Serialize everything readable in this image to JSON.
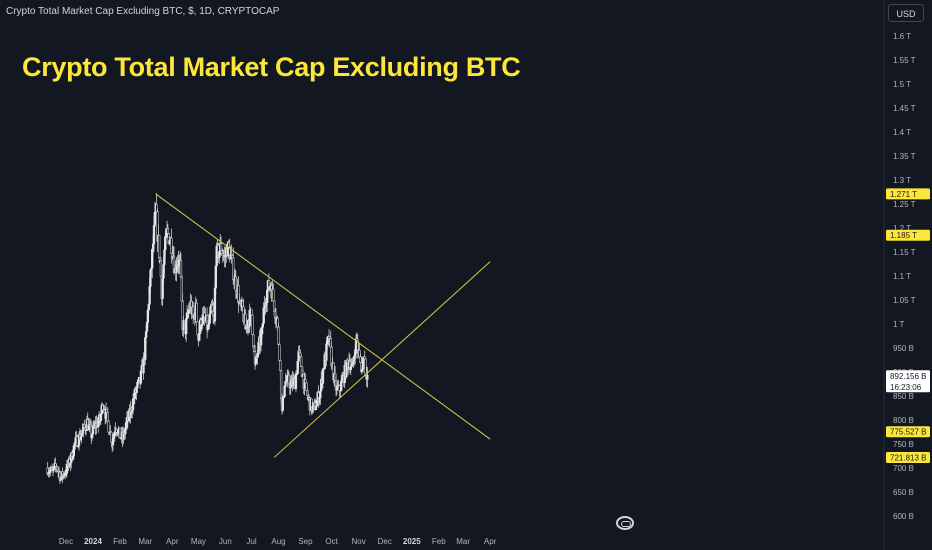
{
  "header": {
    "symbol": "Crypto Total Market Cap Excluding BTC, $, 1D, CRYPTOCAP",
    "headline": "Crypto Total Market Cap Excluding BTC",
    "currency_button": "USD"
  },
  "colors": {
    "background": "#131722",
    "candle": "#e6e6e6",
    "trendline": "#d7cc45",
    "marker": "#fde63a",
    "headline": "#fde63a"
  },
  "icons": {
    "watermark": "tradingview-logo-icon"
  },
  "chart_data": {
    "type": "candlestick",
    "title": "Crypto Total Market Cap Excluding BTC",
    "y_unit": "USD",
    "ylim": [
      595,
      1640
    ],
    "y_ticks": [
      {
        "value": 600,
        "label": "600 B"
      },
      {
        "value": 650,
        "label": "650 B"
      },
      {
        "value": 700,
        "label": "700 B"
      },
      {
        "value": 750,
        "label": "750 B"
      },
      {
        "value": 800,
        "label": "800 B"
      },
      {
        "value": 850,
        "label": "850 B"
      },
      {
        "value": 900,
        "label": "900 B"
      },
      {
        "value": 950,
        "label": "950 B"
      },
      {
        "value": 1000,
        "label": "1 T"
      },
      {
        "value": 1050,
        "label": "1.05 T"
      },
      {
        "value": 1100,
        "label": "1.1 T"
      },
      {
        "value": 1150,
        "label": "1.15 T"
      },
      {
        "value": 1200,
        "label": "1.2 T"
      },
      {
        "value": 1250,
        "label": "1.25 T"
      },
      {
        "value": 1300,
        "label": "1.3 T"
      },
      {
        "value": 1350,
        "label": "1.35 T"
      },
      {
        "value": 1400,
        "label": "1.4 T"
      },
      {
        "value": 1450,
        "label": "1.45 T"
      },
      {
        "value": 1500,
        "label": "1.5 T"
      },
      {
        "value": 1550,
        "label": "1.55 T"
      },
      {
        "value": 1600,
        "label": "1.6 T"
      }
    ],
    "x_ticks": [
      {
        "date": "2023-12-01",
        "label": "Dec",
        "bold": false
      },
      {
        "date": "2024-01-01",
        "label": "2024",
        "bold": true
      },
      {
        "date": "2024-02-01",
        "label": "Feb",
        "bold": false
      },
      {
        "date": "2024-03-01",
        "label": "Mar",
        "bold": false
      },
      {
        "date": "2024-04-01",
        "label": "Apr",
        "bold": false
      },
      {
        "date": "2024-05-01",
        "label": "May",
        "bold": false
      },
      {
        "date": "2024-06-01",
        "label": "Jun",
        "bold": false
      },
      {
        "date": "2024-07-01",
        "label": "Jul",
        "bold": false
      },
      {
        "date": "2024-08-01",
        "label": "Aug",
        "bold": false
      },
      {
        "date": "2024-09-01",
        "label": "Sep",
        "bold": false
      },
      {
        "date": "2024-10-01",
        "label": "Oct",
        "bold": false
      },
      {
        "date": "2024-11-01",
        "label": "Nov",
        "bold": false
      },
      {
        "date": "2024-12-01",
        "label": "Dec",
        "bold": false
      },
      {
        "date": "2025-01-01",
        "label": "2025",
        "bold": true
      },
      {
        "date": "2025-02-01",
        "label": "Feb",
        "bold": false
      },
      {
        "date": "2025-03-01",
        "label": "Mar",
        "bold": false
      },
      {
        "date": "2025-04-01",
        "label": "Apr",
        "bold": false
      }
    ],
    "price_path": [
      [
        "2023-11-10",
        700
      ],
      [
        "2023-11-15",
        690
      ],
      [
        "2023-11-20",
        705
      ],
      [
        "2023-11-25",
        680
      ],
      [
        "2023-12-01",
        695
      ],
      [
        "2023-12-06",
        715
      ],
      [
        "2023-12-11",
        750
      ],
      [
        "2023-12-15",
        760
      ],
      [
        "2023-12-20",
        775
      ],
      [
        "2023-12-25",
        795
      ],
      [
        "2023-12-30",
        770
      ],
      [
        "2024-01-04",
        790
      ],
      [
        "2024-01-09",
        800
      ],
      [
        "2024-01-12",
        835
      ],
      [
        "2024-01-16",
        810
      ],
      [
        "2024-01-20",
        780
      ],
      [
        "2024-01-23",
        755
      ],
      [
        "2024-01-27",
        790
      ],
      [
        "2024-01-31",
        770
      ],
      [
        "2024-02-04",
        760
      ],
      [
        "2024-02-08",
        790
      ],
      [
        "2024-02-12",
        810
      ],
      [
        "2024-02-16",
        840
      ],
      [
        "2024-02-20",
        865
      ],
      [
        "2024-02-24",
        880
      ],
      [
        "2024-02-28",
        920
      ],
      [
        "2024-03-02",
        975
      ],
      [
        "2024-03-05",
        1050
      ],
      [
        "2024-03-08",
        1120
      ],
      [
        "2024-03-11",
        1190
      ],
      [
        "2024-03-13",
        1240
      ],
      [
        "2024-03-15",
        1190
      ],
      [
        "2024-03-18",
        1130
      ],
      [
        "2024-03-20",
        1070
      ],
      [
        "2024-03-23",
        1150
      ],
      [
        "2024-03-26",
        1190
      ],
      [
        "2024-03-29",
        1180
      ],
      [
        "2024-04-01",
        1160
      ],
      [
        "2024-04-04",
        1110
      ],
      [
        "2024-04-07",
        1140
      ],
      [
        "2024-04-10",
        1120
      ],
      [
        "2024-04-13",
        1000
      ],
      [
        "2024-04-16",
        990
      ],
      [
        "2024-04-19",
        1020
      ],
      [
        "2024-04-22",
        1040
      ],
      [
        "2024-04-25",
        1010
      ],
      [
        "2024-04-28",
        1030
      ],
      [
        "2024-05-01",
        970
      ],
      [
        "2024-05-04",
        1010
      ],
      [
        "2024-05-08",
        1010
      ],
      [
        "2024-05-12",
        990
      ],
      [
        "2024-05-16",
        1030
      ],
      [
        "2024-05-19",
        1000
      ],
      [
        "2024-05-21",
        1140
      ],
      [
        "2024-05-24",
        1150
      ],
      [
        "2024-05-27",
        1160
      ],
      [
        "2024-05-31",
        1135
      ],
      [
        "2024-06-03",
        1160
      ],
      [
        "2024-06-06",
        1150
      ],
      [
        "2024-06-09",
        1120
      ],
      [
        "2024-06-12",
        1090
      ],
      [
        "2024-06-15",
        1070
      ],
      [
        "2024-06-18",
        1030
      ],
      [
        "2024-06-21",
        1030
      ],
      [
        "2024-06-24",
        990
      ],
      [
        "2024-06-27",
        1010
      ],
      [
        "2024-07-01",
        1020
      ],
      [
        "2024-07-05",
        910
      ],
      [
        "2024-07-09",
        950
      ],
      [
        "2024-07-13",
        980
      ],
      [
        "2024-07-16",
        1050
      ],
      [
        "2024-07-20",
        1075
      ],
      [
        "2024-07-23",
        1085
      ],
      [
        "2024-07-26",
        1050
      ],
      [
        "2024-07-30",
        1010
      ],
      [
        "2024-08-02",
        940
      ],
      [
        "2024-08-05",
        815
      ],
      [
        "2024-08-08",
        880
      ],
      [
        "2024-08-12",
        880
      ],
      [
        "2024-08-16",
        875
      ],
      [
        "2024-08-20",
        880
      ],
      [
        "2024-08-24",
        935
      ],
      [
        "2024-08-27",
        915
      ],
      [
        "2024-08-31",
        870
      ],
      [
        "2024-09-04",
        845
      ],
      [
        "2024-09-07",
        830
      ],
      [
        "2024-09-10",
        820
      ],
      [
        "2024-09-14",
        840
      ],
      [
        "2024-09-18",
        860
      ],
      [
        "2024-09-21",
        905
      ],
      [
        "2024-09-25",
        945
      ],
      [
        "2024-09-28",
        970
      ],
      [
        "2024-10-01",
        925
      ],
      [
        "2024-10-05",
        870
      ],
      [
        "2024-10-09",
        860
      ],
      [
        "2024-10-13",
        880
      ],
      [
        "2024-10-17",
        905
      ],
      [
        "2024-10-21",
        925
      ],
      [
        "2024-10-25",
        905
      ],
      [
        "2024-10-28",
        955
      ],
      [
        "2024-10-30",
        965
      ],
      [
        "2024-11-02",
        925
      ],
      [
        "2024-11-05",
        905
      ],
      [
        "2024-11-07",
        945
      ],
      [
        "2024-11-09",
        905
      ],
      [
        "2024-11-11",
        892
      ]
    ],
    "trendlines": [
      {
        "name": "descending-resistance",
        "start": [
          "2024-03-13",
          1271
        ],
        "end": [
          "2025-04-01",
          760
        ]
      },
      {
        "name": "ascending-support",
        "start": [
          "2024-07-27",
          722
        ],
        "end": [
          "2025-04-01",
          1130
        ]
      }
    ],
    "price_markers": [
      {
        "value": 1271,
        "label": "1.271 T",
        "style": "yellow"
      },
      {
        "value": 1185,
        "label": "1.185 T",
        "style": "yellow"
      },
      {
        "value": 775.527,
        "label": "775.527 B",
        "style": "yellow"
      },
      {
        "value": 721.813,
        "label": "721.813 B",
        "style": "yellow"
      }
    ],
    "current_price": {
      "value": 892.156,
      "label": "892.156 B",
      "countdown": "16:23:06"
    }
  }
}
